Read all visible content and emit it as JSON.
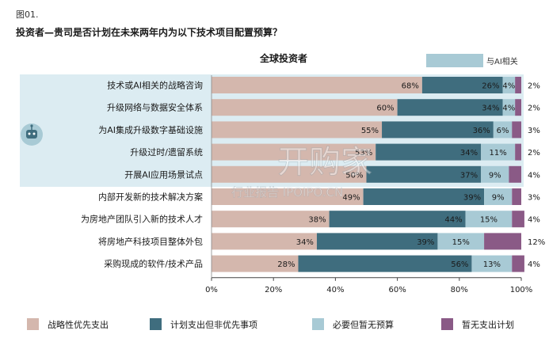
{
  "figure_label": "图01.",
  "question": "投资者—贵司是否计划在未来两年内为以下技术项目配置预算？",
  "watermark": {
    "main": "开购家",
    "sub": "行业报告 IPOIPO.CN"
  },
  "chart_data": {
    "type": "bar",
    "orientation": "horizontal",
    "stacked": true,
    "title": "全球投资者",
    "ai_legend_label": "与AI相关",
    "ai_related_rows": [
      0,
      1,
      2,
      3,
      4
    ],
    "categories": [
      "技术或AI相关的战略咨询",
      "升级网络与数据安全体系",
      "为AI集成升级数字基础设施",
      "升级过时/遗留系统",
      "开展AI应用场景试点",
      "内部开发新的技术解决方案",
      "为房地产团队引入新的技术人才",
      "将房地产科技项目整体外包",
      "采购现成的软件/技术产品"
    ],
    "series": [
      {
        "name": "战略性优先支出",
        "color": "#d4b7ad",
        "values": [
          68,
          60,
          55,
          53,
          50,
          49,
          38,
          34,
          28
        ]
      },
      {
        "name": "计划支出但非优先事项",
        "color": "#3f6d7e",
        "values": [
          26,
          34,
          36,
          34,
          37,
          39,
          44,
          39,
          56
        ]
      },
      {
        "name": "必要但暂无预算",
        "color": "#a8cad5",
        "values": [
          4,
          4,
          6,
          11,
          9,
          9,
          15,
          15,
          13
        ]
      },
      {
        "name": "暂无支出计划",
        "color": "#8a5a86",
        "values": [
          2,
          2,
          3,
          2,
          4,
          3,
          4,
          12,
          4
        ]
      }
    ],
    "xlim": [
      0,
      100
    ],
    "xticks": [
      "0%",
      "20%",
      "40%",
      "60%",
      "80%",
      "100%"
    ],
    "ai_highlight_color": "#dcecf2"
  }
}
